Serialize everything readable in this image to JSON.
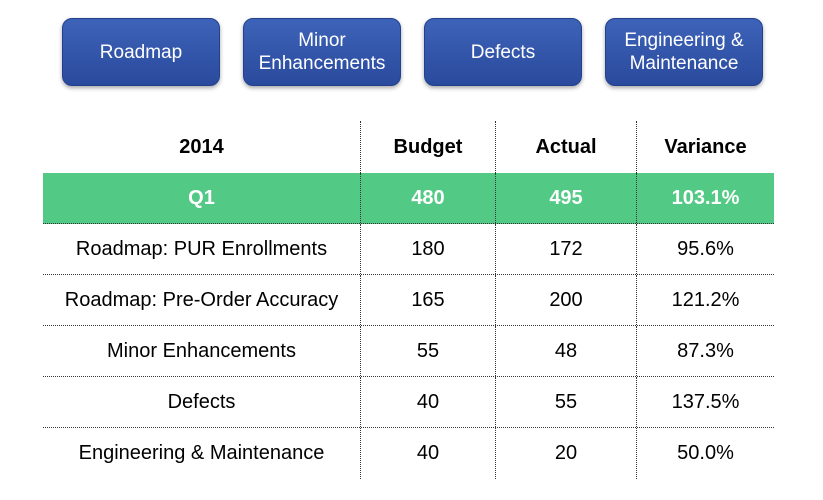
{
  "buttons": [
    {
      "label": "Roadmap"
    },
    {
      "label": "Minor\nEnhancements"
    },
    {
      "label": "Defects"
    },
    {
      "label": "Engineering &\nMaintenance"
    }
  ],
  "table": {
    "header": {
      "year": "2014",
      "budget": "Budget",
      "actual": "Actual",
      "variance": "Variance"
    },
    "summary": {
      "name": "Q1",
      "budget": "480",
      "actual": "495",
      "variance": "103.1%"
    },
    "rows": [
      {
        "name": "Roadmap: PUR Enrollments",
        "budget": "180",
        "actual": "172",
        "variance": "95.6%"
      },
      {
        "name": "Roadmap: Pre-Order Accuracy",
        "budget": "165",
        "actual": "200",
        "variance": "121.2%"
      },
      {
        "name": "Minor Enhancements",
        "budget": "55",
        "actual": "48",
        "variance": "87.3%"
      },
      {
        "name": "Defects",
        "budget": "40",
        "actual": "55",
        "variance": "137.5%"
      },
      {
        "name": "Engineering & Maintenance",
        "budget": "40",
        "actual": "20",
        "variance": "50.0%"
      }
    ]
  },
  "colors": {
    "button_fill": "#2f52a6",
    "summary_row": "#52c984"
  }
}
